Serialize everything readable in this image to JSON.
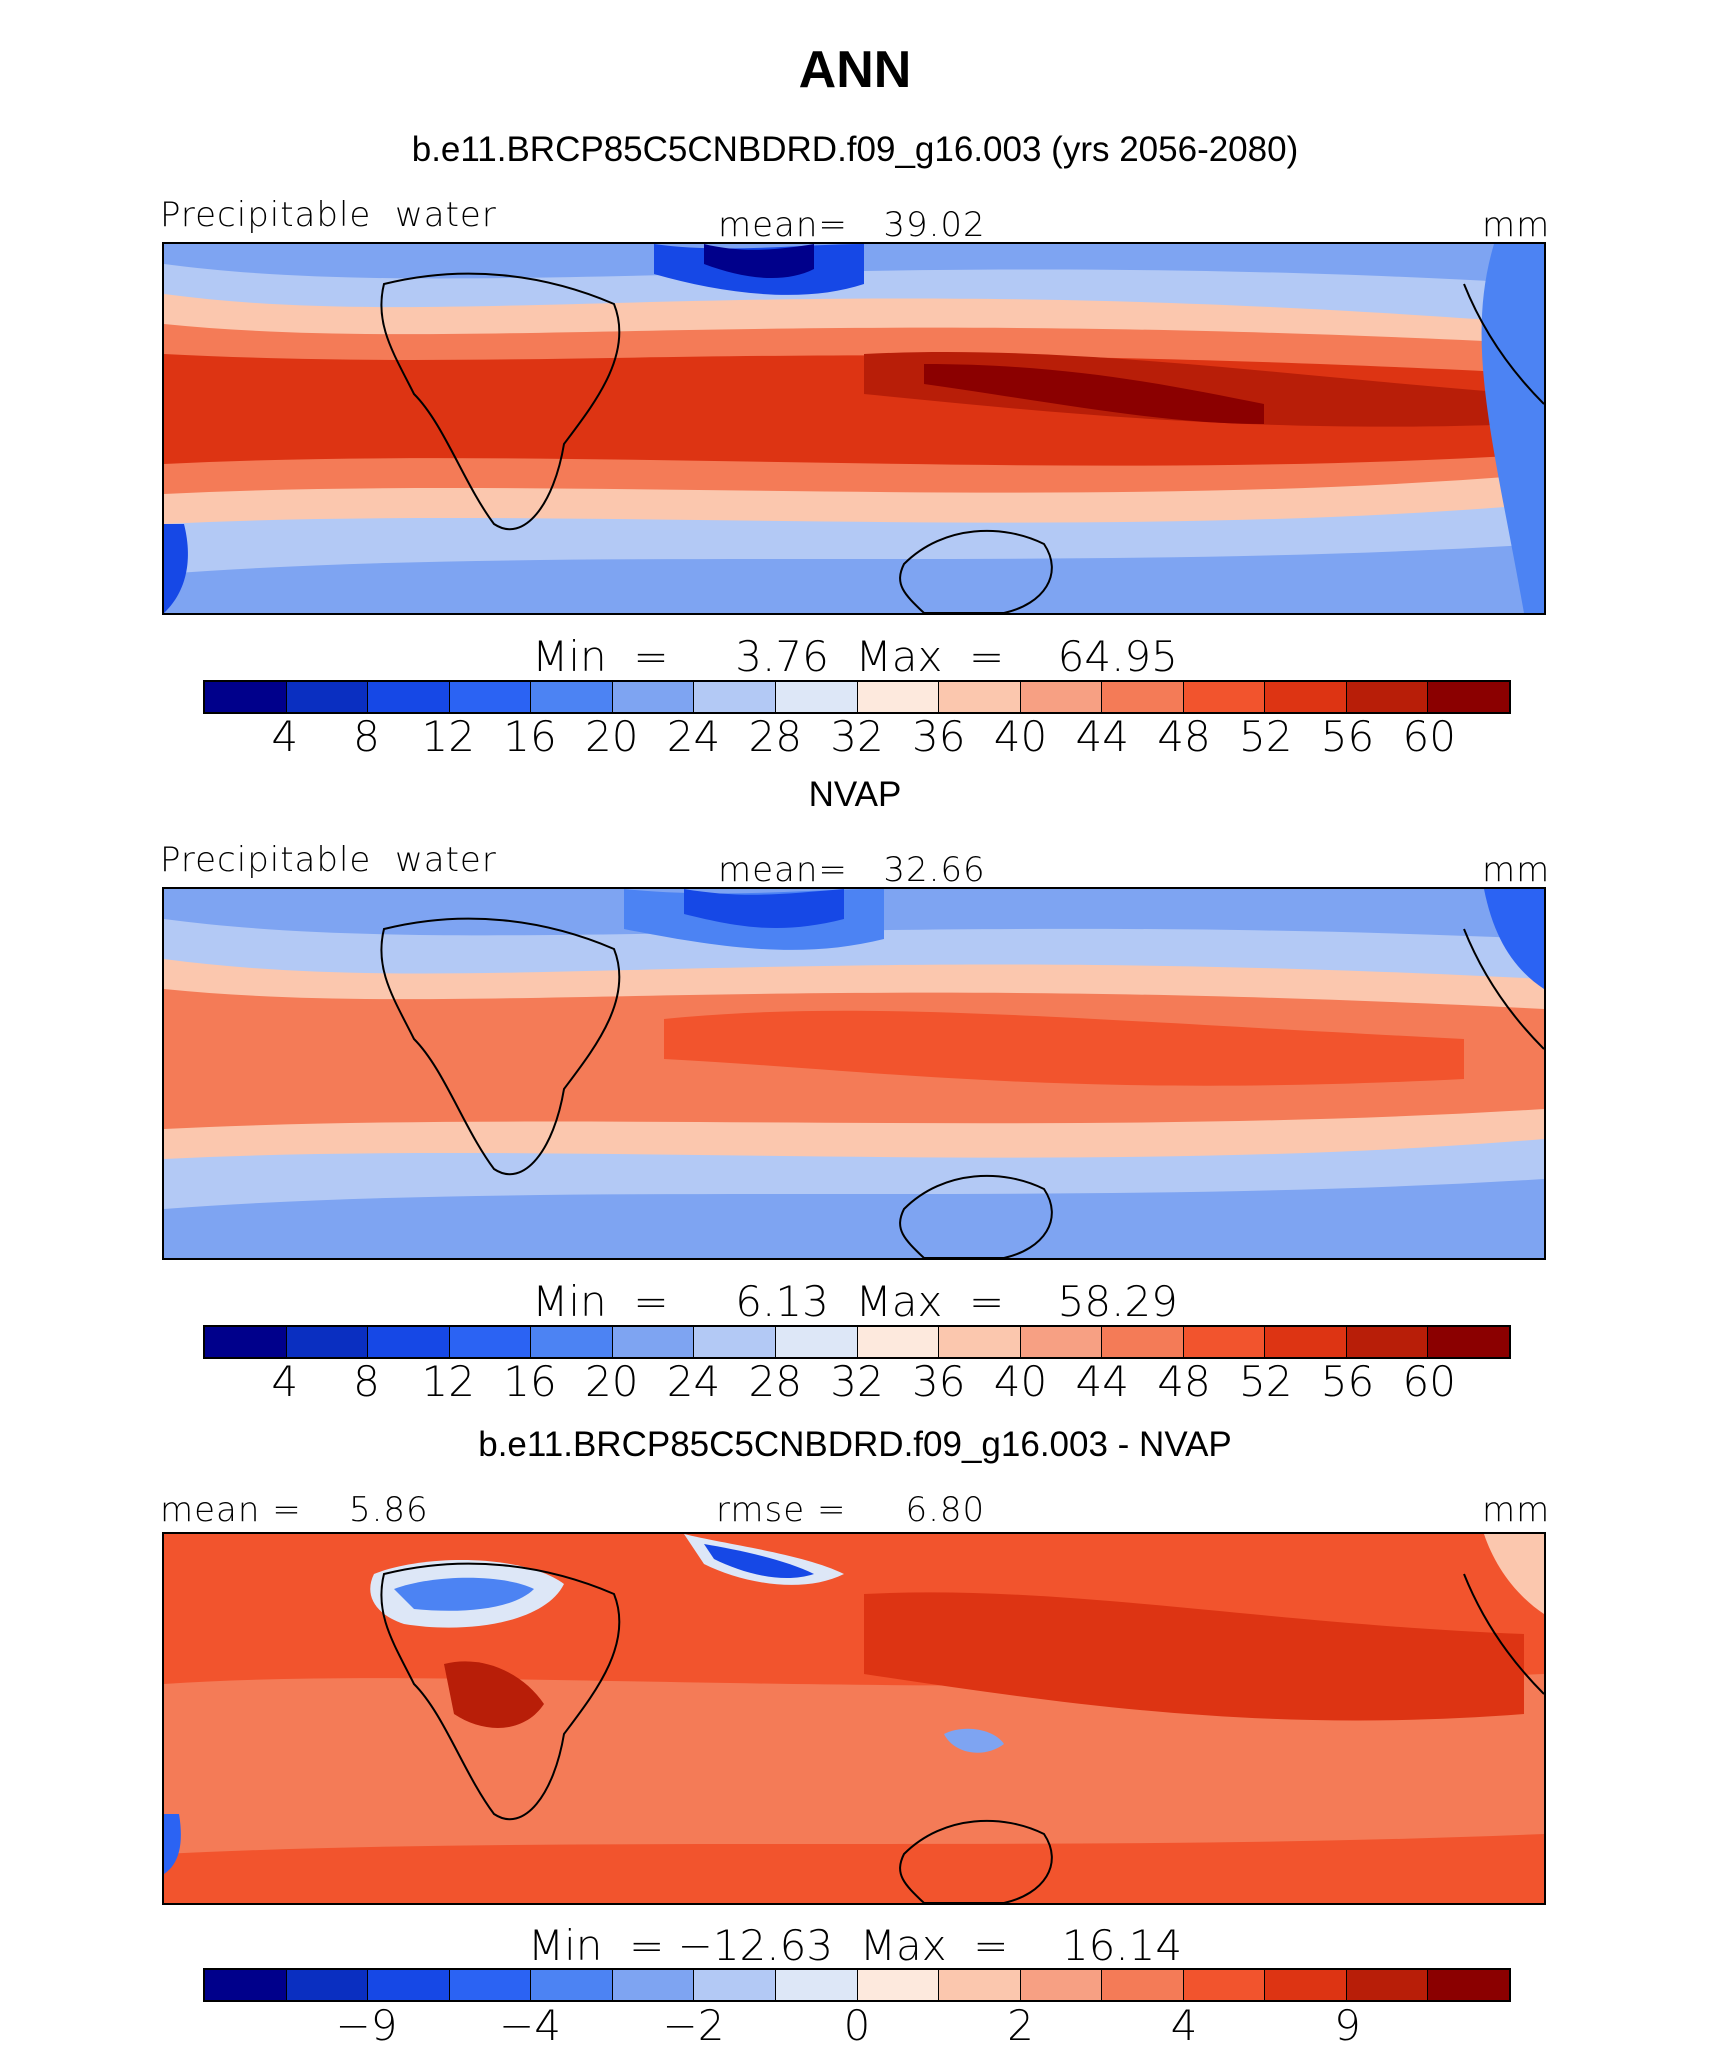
{
  "chart_data": {
    "type": "heatmap",
    "title": "ANN",
    "colors": [
      "#00008b",
      "#0a2fc1",
      "#1648e6",
      "#2b63f3",
      "#4c83f3",
      "#7ea4f2",
      "#b3c9f5",
      "#dde7f7",
      "#fde9dd",
      "#fbc7ae",
      "#f7a083",
      "#f47b57",
      "#f2542d",
      "#dd3413",
      "#b81e08",
      "#8b0000"
    ],
    "panels": [
      {
        "subtitle": "b.e11.BRCP85C5CNBDRD.f09_g16.003 (yrs 2056-2080)",
        "left_label": "Precipitable  water",
        "center_label": "mean=   39.02",
        "right_label": "mm",
        "stats": "Min  =     3.76  Max  =    64.95",
        "levels": [
          4,
          8,
          12,
          16,
          20,
          24,
          28,
          32,
          36,
          40,
          44,
          48,
          52,
          56,
          60
        ],
        "tick_labels": [
          "4",
          "8",
          "12",
          "16",
          "20",
          "24",
          "28",
          "32",
          "36",
          "40",
          "44",
          "48",
          "52",
          "56",
          "60"
        ],
        "mean": 39.02,
        "min": 3.76,
        "max": 64.95
      },
      {
        "subtitle": "NVAP",
        "left_label": "Precipitable  water",
        "center_label": "mean=   32.66",
        "right_label": "mm",
        "stats": "Min  =     6.13  Max  =    58.29",
        "levels": [
          4,
          8,
          12,
          16,
          20,
          24,
          28,
          32,
          36,
          40,
          44,
          48,
          52,
          56,
          60
        ],
        "tick_labels": [
          "4",
          "8",
          "12",
          "16",
          "20",
          "24",
          "28",
          "32",
          "36",
          "40",
          "44",
          "48",
          "52",
          "56",
          "60"
        ],
        "mean": 32.66,
        "min": 6.13,
        "max": 58.29
      },
      {
        "subtitle": "b.e11.BRCP85C5CNBDRD.f09_g16.003 - NVAP",
        "left_label": "mean =    5.86",
        "center_label": "rmse =     6.80",
        "right_label": "mm",
        "stats": "Min  = −12.63  Max  =    16.14",
        "levels": [
          -12,
          -9,
          -6,
          -4,
          -3,
          -2,
          -1,
          0,
          1,
          2,
          3,
          4,
          6,
          9,
          12
        ],
        "tick_labels": [
          "−9",
          "−4",
          "−2",
          "0",
          "2",
          "4",
          "9"
        ],
        "tick_level_index": [
          1,
          3,
          5,
          7,
          9,
          11,
          13
        ],
        "mean": 5.86,
        "rmse": 6.8,
        "min": -12.63,
        "max": 16.14
      }
    ]
  }
}
